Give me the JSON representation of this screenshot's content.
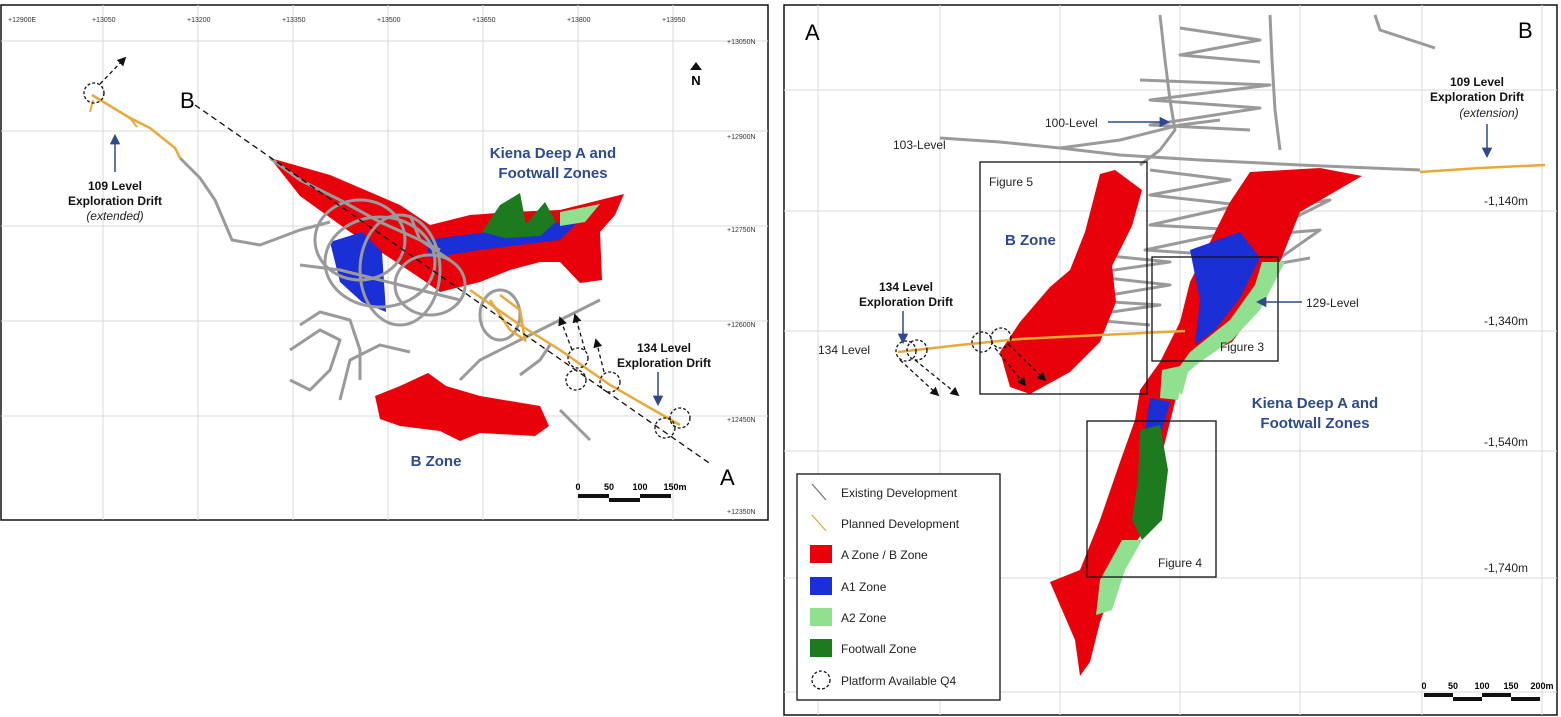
{
  "left_panel": {
    "grid_labels_x": [
      "+12900E",
      "+13050",
      "+13200",
      "+13350",
      "+13500",
      "+13650",
      "+13800",
      "+13950"
    ],
    "grid_labels_y": [
      "+13050N",
      "+12900N",
      "+12750N",
      "+12600N",
      "+12450N",
      "+12350N"
    ],
    "north": "N",
    "section_start": "B",
    "section_end": "A",
    "drift_109": {
      "line1": "109 Level",
      "line2": "Exploration Drift",
      "line3": "(extended)"
    },
    "zone_label": {
      "line1": "Kiena Deep A and",
      "line2": "Footwall Zones"
    },
    "drift_134": {
      "line1": "134 Level",
      "line2": "Exploration Drift"
    },
    "b_zone": "B Zone",
    "scale_labels": [
      "0",
      "50",
      "100",
      "150m"
    ]
  },
  "right_panel": {
    "section_start": "A",
    "section_end": "B",
    "level_100": "100-Level",
    "level_103": "103-Level",
    "drift_109": {
      "line1": "109 Level",
      "line2": "Exploration Drift",
      "line3": "(extension)"
    },
    "depth_labels": [
      "-1,140m",
      "-1,340m",
      "-1,540m",
      "-1,740m"
    ],
    "figure_5": "Figure 5",
    "b_zone": "B Zone",
    "drift_134": {
      "line1": "134 Level",
      "line2": "Exploration Drift"
    },
    "level_134": "134 Level",
    "level_129": "129-Level",
    "figure_3": "Figure 3",
    "zone_label": {
      "line1": "Kiena Deep A and",
      "line2": "Footwall Zones"
    },
    "figure_4": "Figure 4",
    "legend": [
      "Existing Development",
      "Planned Development",
      "A Zone / B Zone",
      "A1 Zone",
      "A2 Zone",
      "Footwall Zone",
      "Platform Available Q4"
    ],
    "scale_labels": [
      "0",
      "50",
      "100",
      "150",
      "200m"
    ]
  }
}
